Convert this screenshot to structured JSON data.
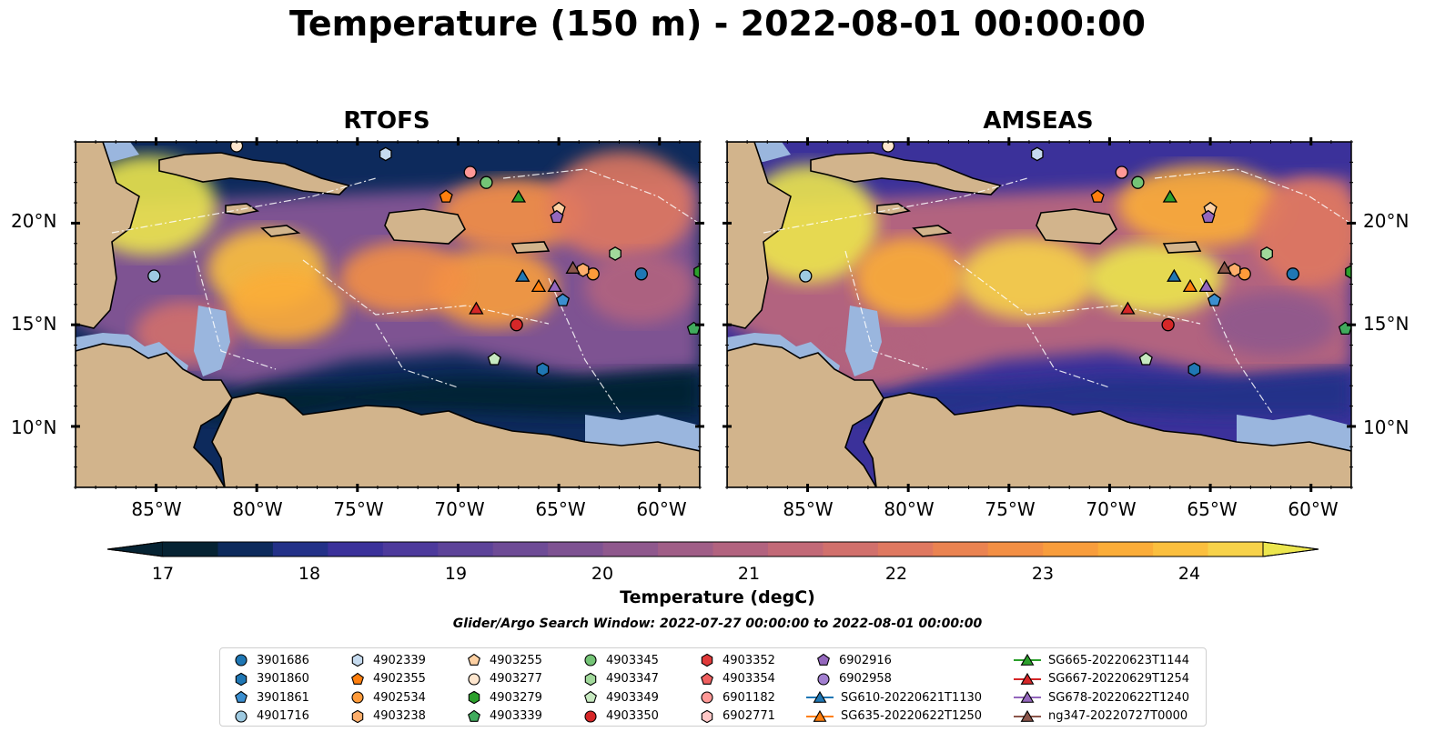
{
  "title": "Temperature (150 m) - 2022-08-01 00:00:00",
  "panels": [
    {
      "title": "RTOFS",
      "model": "rtofs"
    },
    {
      "title": "AMSEAS",
      "model": "amseas"
    }
  ],
  "axes": {
    "lat_labels": [
      "20°N",
      "15°N",
      "10°N"
    ],
    "lon_labels": [
      "85°W",
      "80°W",
      "75°W",
      "70°W",
      "65°W",
      "60°W"
    ],
    "lon_range": [
      -89,
      -58
    ],
    "lat_range": [
      7,
      24
    ],
    "lat_ticks": [
      20,
      15,
      10
    ],
    "lon_ticks": [
      -85,
      -80,
      -75,
      -70,
      -65,
      -60
    ]
  },
  "colorbar": {
    "label": "Temperature (degC)",
    "min": 17,
    "max": 24.5,
    "step": 0.5,
    "ticks": [
      "17",
      "18",
      "19",
      "20",
      "21",
      "22",
      "23",
      "24"
    ],
    "tick_values": [
      17,
      18,
      19,
      20,
      21,
      22,
      23,
      24
    ],
    "extend": "both",
    "colors": [
      "#062333",
      "#0d2a5c",
      "#233188",
      "#3b319a",
      "#4d3a9c",
      "#5d4399",
      "#6e4b96",
      "#7e5292",
      "#8f588d",
      "#a05e87",
      "#b2637f",
      "#c26977",
      "#d1706c",
      "#df7860",
      "#ea8351",
      "#f38f44",
      "#f89d3c",
      "#fbad39",
      "#fbbf3e",
      "#f7d24a",
      "#ece64e"
    ]
  },
  "search_window": "Glider/Argo Search Window: 2022-07-27 00:00:00 to 2022-08-01 00:00:00",
  "land_color": "#d2b48c",
  "shelf_color": "#9ab6de",
  "legend": [
    {
      "label": "3901686",
      "marker": "circle",
      "color": "#1f77b4"
    },
    {
      "label": "3901860",
      "marker": "hexagon",
      "color": "#1f77b4"
    },
    {
      "label": "3901861",
      "marker": "pentagon",
      "color": "#3b8fd0"
    },
    {
      "label": "4901716",
      "marker": "circle",
      "color": "#9ecae1"
    },
    {
      "label": "4902339",
      "marker": "hexagon",
      "color": "#c6dbef"
    },
    {
      "label": "4902355",
      "marker": "pentagon",
      "color": "#ff7f0e"
    },
    {
      "label": "4902534",
      "marker": "circle",
      "color": "#ff9b3a"
    },
    {
      "label": "4903238",
      "marker": "hexagon",
      "color": "#fdae6b"
    },
    {
      "label": "4903255",
      "marker": "pentagon",
      "color": "#fdd0a2"
    },
    {
      "label": "4903277",
      "marker": "circle",
      "color": "#fee6ce"
    },
    {
      "label": "4903279",
      "marker": "hexagon",
      "color": "#2ca02c"
    },
    {
      "label": "4903339",
      "marker": "pentagon",
      "color": "#41ab5d"
    },
    {
      "label": "4903345",
      "marker": "circle",
      "color": "#74c476"
    },
    {
      "label": "4903347",
      "marker": "hexagon",
      "color": "#a1d99b"
    },
    {
      "label": "4903349",
      "marker": "pentagon",
      "color": "#c7e9c0"
    },
    {
      "label": "4903350",
      "marker": "circle",
      "color": "#d62728"
    },
    {
      "label": "4903352",
      "marker": "hexagon",
      "color": "#e03a3a"
    },
    {
      "label": "4903354",
      "marker": "pentagon",
      "color": "#f06060"
    },
    {
      "label": "6901182",
      "marker": "circle",
      "color": "#ff9896"
    },
    {
      "label": "6902771",
      "marker": "hexagon",
      "color": "#ffc7c6"
    },
    {
      "label": "6902916",
      "marker": "pentagon",
      "color": "#9467bd"
    },
    {
      "label": "6902958",
      "marker": "circle",
      "color": "#a27fd0"
    },
    {
      "label": "SG610-20220621T1130",
      "marker": "triangle",
      "color": "#1f77b4",
      "line": true
    },
    {
      "label": "SG635-20220622T1250",
      "marker": "triangle",
      "color": "#ff7f0e",
      "line": true
    },
    {
      "label": "SG665-20220623T1144",
      "marker": "triangle",
      "color": "#2ca02c",
      "line": true
    },
    {
      "label": "SG667-20220629T1254",
      "marker": "triangle",
      "color": "#d62728",
      "line": true
    },
    {
      "label": "SG678-20220622T1240",
      "marker": "triangle",
      "color": "#9467bd",
      "line": true
    },
    {
      "label": "ng347-20220727T0000",
      "marker": "triangle",
      "color": "#8c564b",
      "line": true
    }
  ],
  "map_markers": [
    {
      "id": "3901686",
      "lon": -60.9,
      "lat": 17.5
    },
    {
      "id": "4901716",
      "lon": -85.1,
      "lat": 17.4
    },
    {
      "id": "4902339",
      "lon": -73.6,
      "lat": 23.4
    },
    {
      "id": "4902355",
      "lon": -70.6,
      "lat": 21.3
    },
    {
      "id": "4902534",
      "lon": -63.3,
      "lat": 17.5
    },
    {
      "id": "4903238",
      "lon": -63.8,
      "lat": 17.7
    },
    {
      "id": "4903255",
      "lon": -65.0,
      "lat": 20.7
    },
    {
      "id": "4903277",
      "lon": -81.0,
      "lat": 23.8
    },
    {
      "id": "4903279",
      "lon": -58.0,
      "lat": 17.6
    },
    {
      "id": "4903339",
      "lon": -58.3,
      "lat": 14.8
    },
    {
      "id": "4903345",
      "lon": -68.6,
      "lat": 22.0
    },
    {
      "id": "4903347",
      "lon": -62.2,
      "lat": 18.5
    },
    {
      "id": "4903349",
      "lon": -68.2,
      "lat": 13.3
    },
    {
      "id": "4903350",
      "lon": -67.1,
      "lat": 15.0
    },
    {
      "id": "6901182",
      "lon": -69.4,
      "lat": 22.5
    },
    {
      "id": "6902916",
      "lon": -65.1,
      "lat": 20.3
    },
    {
      "id": "3901861",
      "lon": -64.8,
      "lat": 16.2
    },
    {
      "id": "3901860",
      "lon": -65.8,
      "lat": 12.8
    },
    {
      "id": "SG665-20220623T1144",
      "lon": -67.0,
      "lat": 21.3
    },
    {
      "id": "SG667-20220629T1254",
      "lon": -69.1,
      "lat": 15.8
    },
    {
      "id": "SG610-20220621T1130",
      "lon": -66.8,
      "lat": 17.4
    },
    {
      "id": "SG635-20220622T1250",
      "lon": -66.0,
      "lat": 16.9
    },
    {
      "id": "SG678-20220622T1240",
      "lon": -65.2,
      "lat": 16.9
    },
    {
      "id": "ng347-20220727T0000",
      "lon": -64.3,
      "lat": 17.8
    }
  ]
}
